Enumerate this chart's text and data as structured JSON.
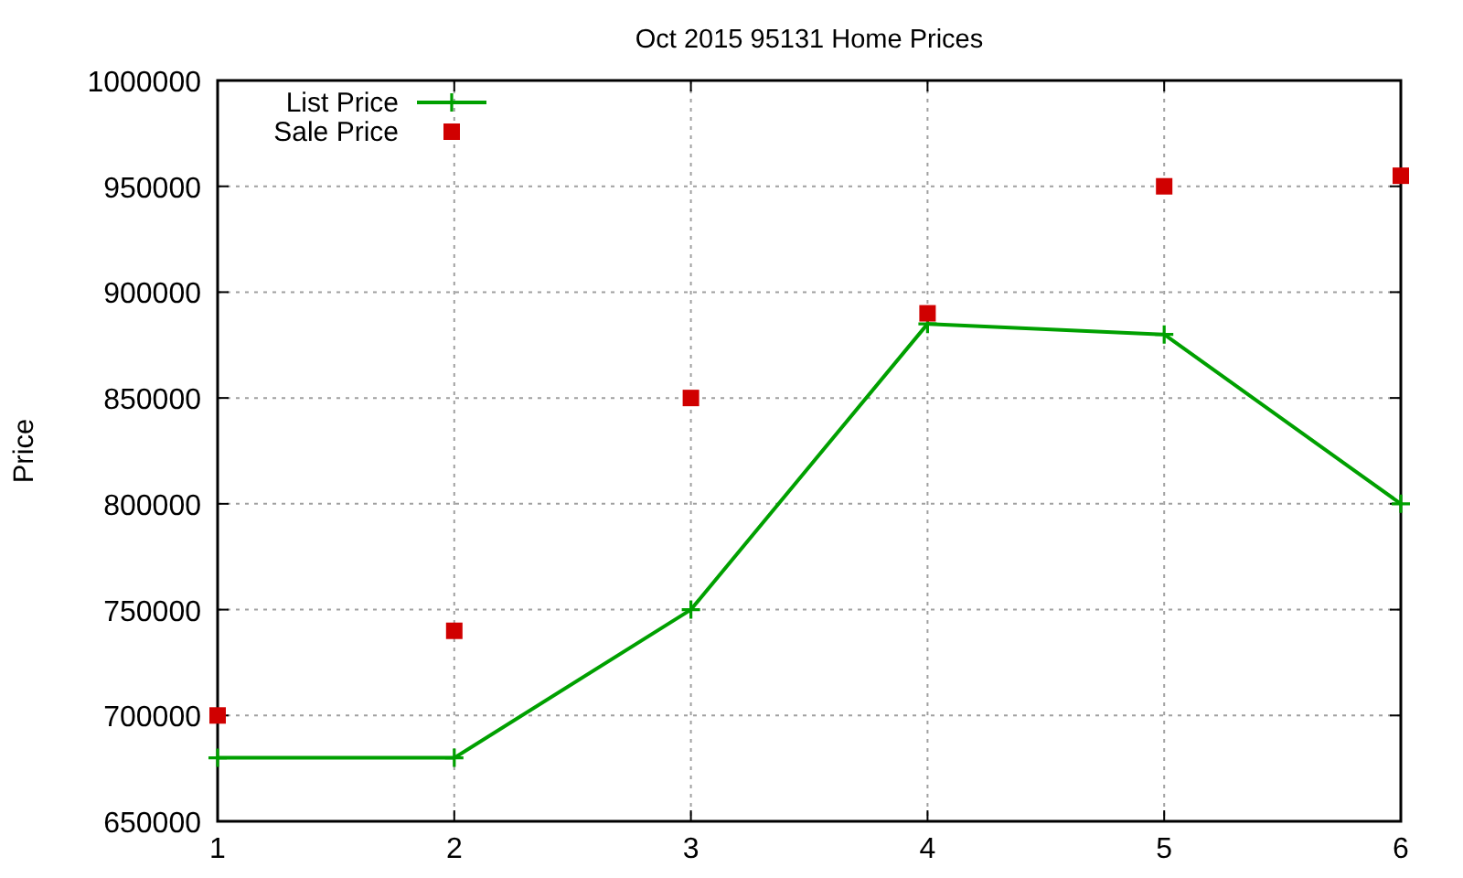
{
  "chart_data": {
    "type": "line",
    "title": "Oct 2015 95131 Home Prices",
    "ylabel": "Price",
    "x": [
      1,
      2,
      3,
      4,
      5,
      6
    ],
    "series": [
      {
        "name": "List Price",
        "marker": "cross",
        "color": "#00a000",
        "values": [
          680000,
          680000,
          750000,
          885000,
          880000,
          800000
        ]
      },
      {
        "name": "Sale Price",
        "type": "scatter",
        "marker": "square",
        "color": "#d00000",
        "values": [
          700000,
          740000,
          850000,
          890000,
          950000,
          955000
        ]
      }
    ],
    "xlim": [
      1,
      6
    ],
    "xticks": [
      1,
      2,
      3,
      4,
      5,
      6
    ],
    "ylim": [
      650000,
      1000000
    ],
    "yticks": [
      650000,
      700000,
      750000,
      800000,
      850000,
      900000,
      950000,
      1000000
    ],
    "grid": true,
    "legend": "top left",
    "line_style": "solid"
  }
}
